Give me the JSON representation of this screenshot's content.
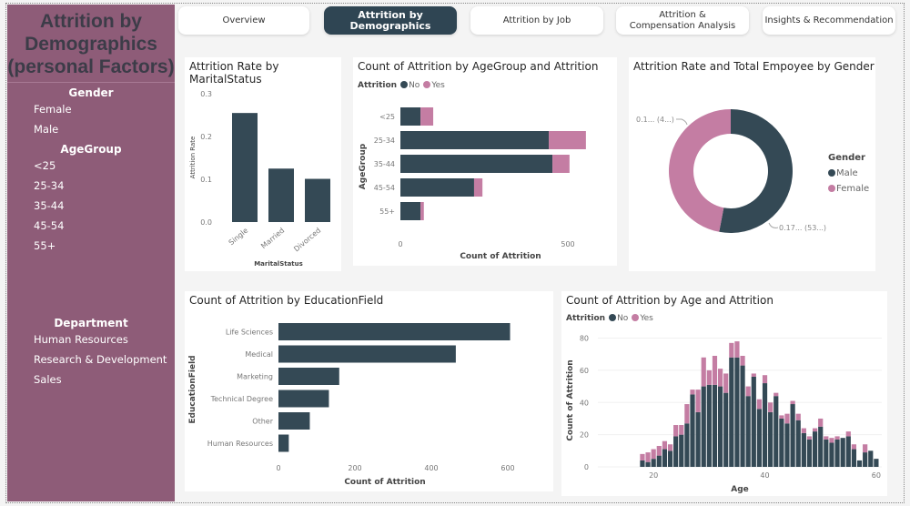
{
  "colors": {
    "no": "#344955",
    "yes": "#c47da3",
    "sidebar": "#8e5c78",
    "active_tab": "#2f4553"
  },
  "sidebar": {
    "title": "Attrition by Demographics (personal Factors)",
    "gender": {
      "heading": "Gender",
      "items": [
        "Female",
        "Male"
      ]
    },
    "agegroup": {
      "heading": "AgeGroup",
      "items": [
        "<25",
        "25-34",
        "35-44",
        "45-54",
        "55+"
      ]
    },
    "department": {
      "heading": "Department",
      "items": [
        "Human Resources",
        "Research & Development",
        "Sales"
      ]
    }
  },
  "tabs": [
    {
      "label": "Overview",
      "active": false
    },
    {
      "label": "Attrition by Demographics",
      "active": true
    },
    {
      "label": "Attrition by Job",
      "active": false
    },
    {
      "label": "Attrition & Compensation Analysis",
      "active": false
    },
    {
      "label": "Insights & Recommendation",
      "active": false
    }
  ],
  "legend": {
    "title": "Attrition",
    "no": "No",
    "yes": "Yes"
  },
  "chart_data": [
    {
      "type": "bar",
      "title": "Attrition Rate by MaritalStatus",
      "xlabel": "MaritalStatus",
      "ylabel": "Attrition Rate",
      "categories": [
        "Single",
        "Married",
        "Divorced"
      ],
      "values": [
        0.255,
        0.125,
        0.101
      ],
      "ylim": [
        0,
        0.3
      ],
      "yticks": [
        "0.0",
        "0.1",
        "0.2",
        "0.3"
      ]
    },
    {
      "type": "bar",
      "orientation": "horizontal",
      "stacked": true,
      "title": "Count of Attrition by AgeGroup and Attrition",
      "xlabel": "Count of Attrition",
      "ylabel": "AgeGroup",
      "categories": [
        "<25",
        "25-34",
        "35-44",
        "45-54",
        "55+"
      ],
      "series": [
        {
          "name": "No",
          "values": [
            60,
            443,
            454,
            220,
            60
          ]
        },
        {
          "name": "Yes",
          "values": [
            38,
            111,
            51,
            25,
            10
          ]
        }
      ],
      "xlim": [
        0,
        560
      ],
      "xticks": [
        "0",
        "500"
      ]
    },
    {
      "type": "pie",
      "donut": true,
      "title": "Attrition Rate and Total Empoyee by Gender",
      "legend_title": "Gender",
      "slices": [
        {
          "name": "Male",
          "value": 53,
          "label": "0.17... (53...)"
        },
        {
          "name": "Female",
          "value": 47,
          "label": "0.1... (4...)"
        }
      ]
    },
    {
      "type": "bar",
      "orientation": "horizontal",
      "title": "Count of Attrition by EducationField",
      "xlabel": "Count of Attrition",
      "ylabel": "EducationField",
      "categories": [
        "Life Sciences",
        "Medical",
        "Marketing",
        "Technical Degree",
        "Other",
        "Human Resources"
      ],
      "values": [
        606,
        464,
        159,
        132,
        82,
        27
      ],
      "xlim": [
        0,
        620
      ],
      "xticks": [
        "0",
        "200",
        "400",
        "600"
      ]
    },
    {
      "type": "bar",
      "stacked": true,
      "title": "Count of Attrition by Age and Attrition",
      "xlabel": "Age",
      "ylabel": "Count of Attrition",
      "x": [
        18,
        19,
        20,
        21,
        22,
        23,
        24,
        25,
        26,
        27,
        28,
        29,
        30,
        31,
        32,
        33,
        34,
        35,
        36,
        37,
        38,
        39,
        40,
        41,
        42,
        43,
        44,
        45,
        46,
        47,
        48,
        49,
        50,
        51,
        52,
        53,
        54,
        55,
        56,
        57,
        58,
        59,
        60
      ],
      "series": [
        {
          "name": "No",
          "values": [
            4,
            3,
            5,
            7,
            11,
            10,
            19,
            20,
            27,
            45,
            34,
            50,
            51,
            51,
            50,
            46,
            68,
            68,
            63,
            44,
            56,
            36,
            52,
            34,
            44,
            30,
            27,
            39,
            29,
            21,
            17,
            22,
            25,
            17,
            15,
            17,
            18,
            19,
            11,
            4,
            9,
            10,
            5
          ]
        },
        {
          "name": "Yes",
          "values": [
            4,
            6,
            6,
            6,
            5,
            4,
            7,
            6,
            12,
            3,
            14,
            18,
            9,
            18,
            11,
            12,
            9,
            10,
            6,
            6,
            2,
            6,
            5,
            6,
            2,
            2,
            6,
            2,
            4,
            3,
            2,
            2,
            5,
            2,
            3,
            2,
            0,
            3,
            3,
            0,
            5,
            0,
            0
          ]
        }
      ],
      "xlim": [
        10,
        61
      ],
      "ylim": [
        0,
        82
      ],
      "xticks": [
        "20",
        "40",
        "60"
      ],
      "yticks": [
        "0",
        "20",
        "40",
        "60",
        "80"
      ]
    }
  ]
}
